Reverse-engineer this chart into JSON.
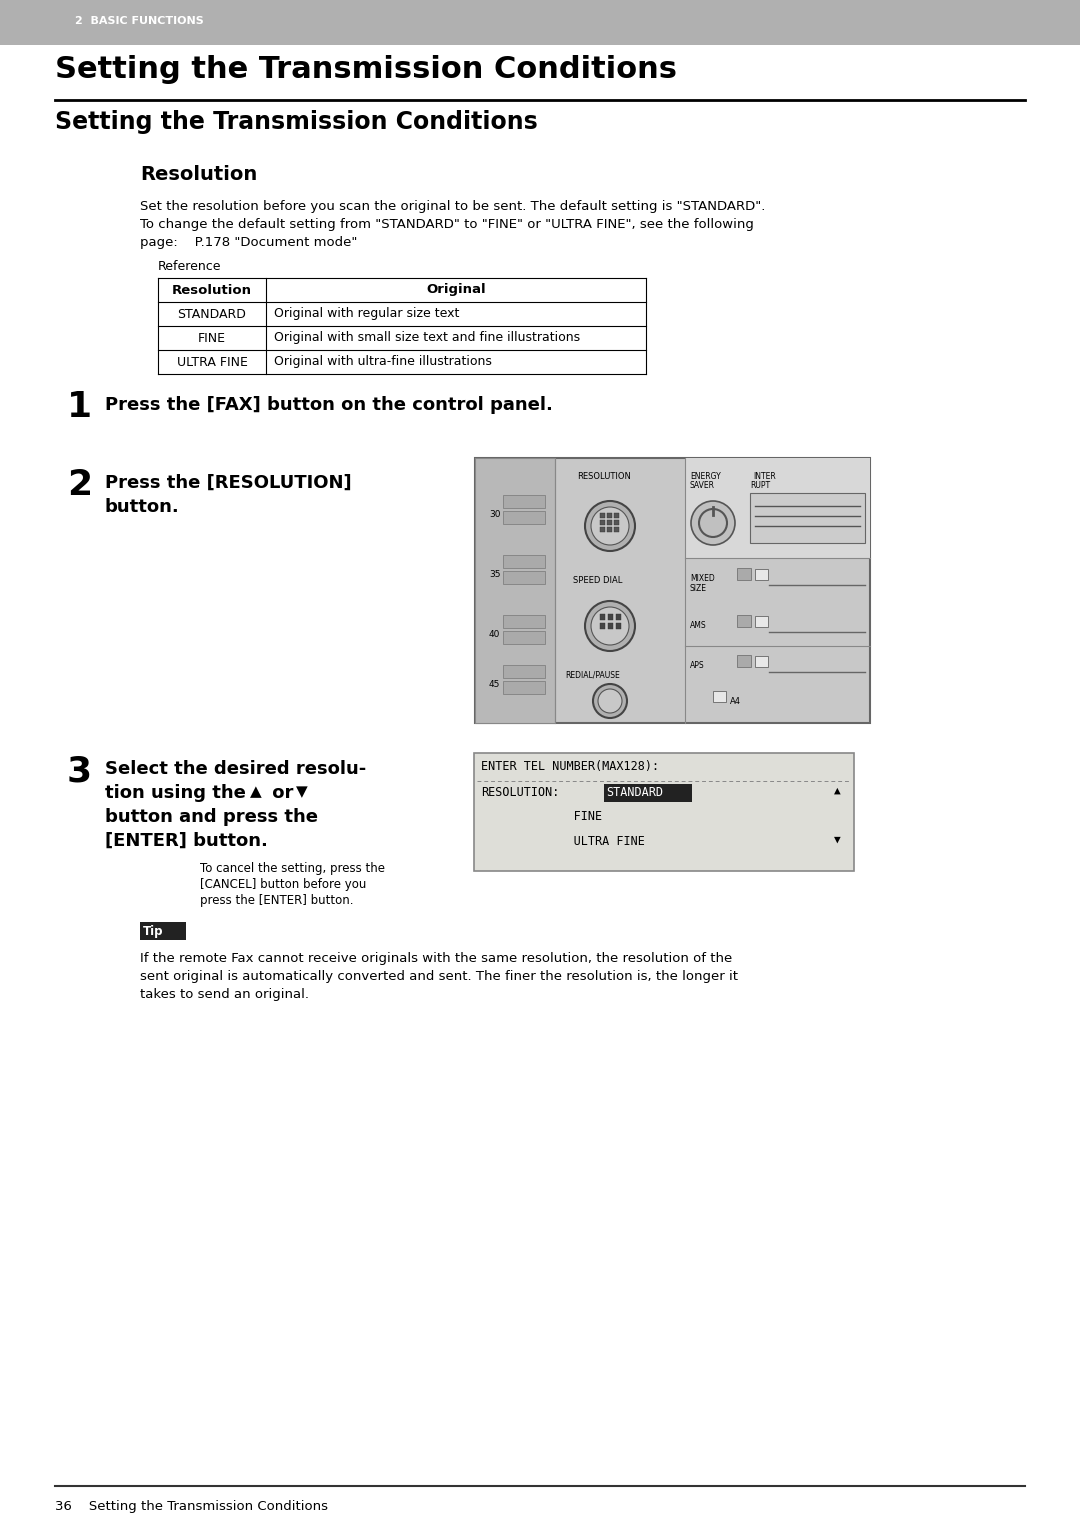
{
  "page_bg": "#ffffff",
  "header_bg": "#b0b0b0",
  "header_text": "2  BASIC FUNCTIONS",
  "header_text_color": "#ffffff",
  "title1": "Setting the Transmission Conditions",
  "title2": "Setting the Transmission Conditions",
  "section_title": "Resolution",
  "body_text1_l1": "Set the resolution before you scan the original to be sent. The default setting is \"STANDARD\".",
  "body_text1_l2": "To change the default setting from \"STANDARD\" to \"FINE\" or \"ULTRA FINE\", see the following",
  "body_text1_l3": "page:    P.178 \"Document mode\"",
  "reference_label": "Reference",
  "table_headers": [
    "Resolution",
    "Original"
  ],
  "table_rows": [
    [
      "STANDARD",
      "Original with regular size text"
    ],
    [
      "FINE",
      "Original with small size text and fine illustrations"
    ],
    [
      "ULTRA FINE",
      "Original with ultra-fine illustrations"
    ]
  ],
  "step1_num": "1",
  "step1_text": "Press the [FAX] button on the control panel.",
  "step2_num": "2",
  "step2_text_line1": "Press the [RESOLUTION]",
  "step2_text_line2": "button.",
  "step3_num": "3",
  "step3_text_line1": "Select the desired resolu-",
  "step3_text_line2": "tion using the",
  "step3_text_up": "▲",
  "step3_text_or": " or ",
  "step3_text_down": "▼",
  "step3_text_line3": "button and press the",
  "step3_text_line4": "[ENTER] button.",
  "step3_subtext_l1": "To cancel the setting, press the",
  "step3_subtext_l2": "[CANCEL] button before you",
  "step3_subtext_l3": "press the [ENTER] button.",
  "tip_label": "Tip",
  "tip_text_l1": "If the remote Fax cannot receive originals with the same resolution, the resolution of the",
  "tip_text_l2": "sent original is automatically converted and sent. The finer the resolution is, the longer it",
  "tip_text_l3": "takes to send an original.",
  "footer_line": "36    Setting the Transmission Conditions",
  "panel_bg": "#c8c8c8",
  "panel_left_bg": "#b8b8b8",
  "panel_mid_bg": "#c8c8c8",
  "panel_right_bg": "#cccccc",
  "disp_bg": "#deded8",
  "disp_border": "#888888"
}
